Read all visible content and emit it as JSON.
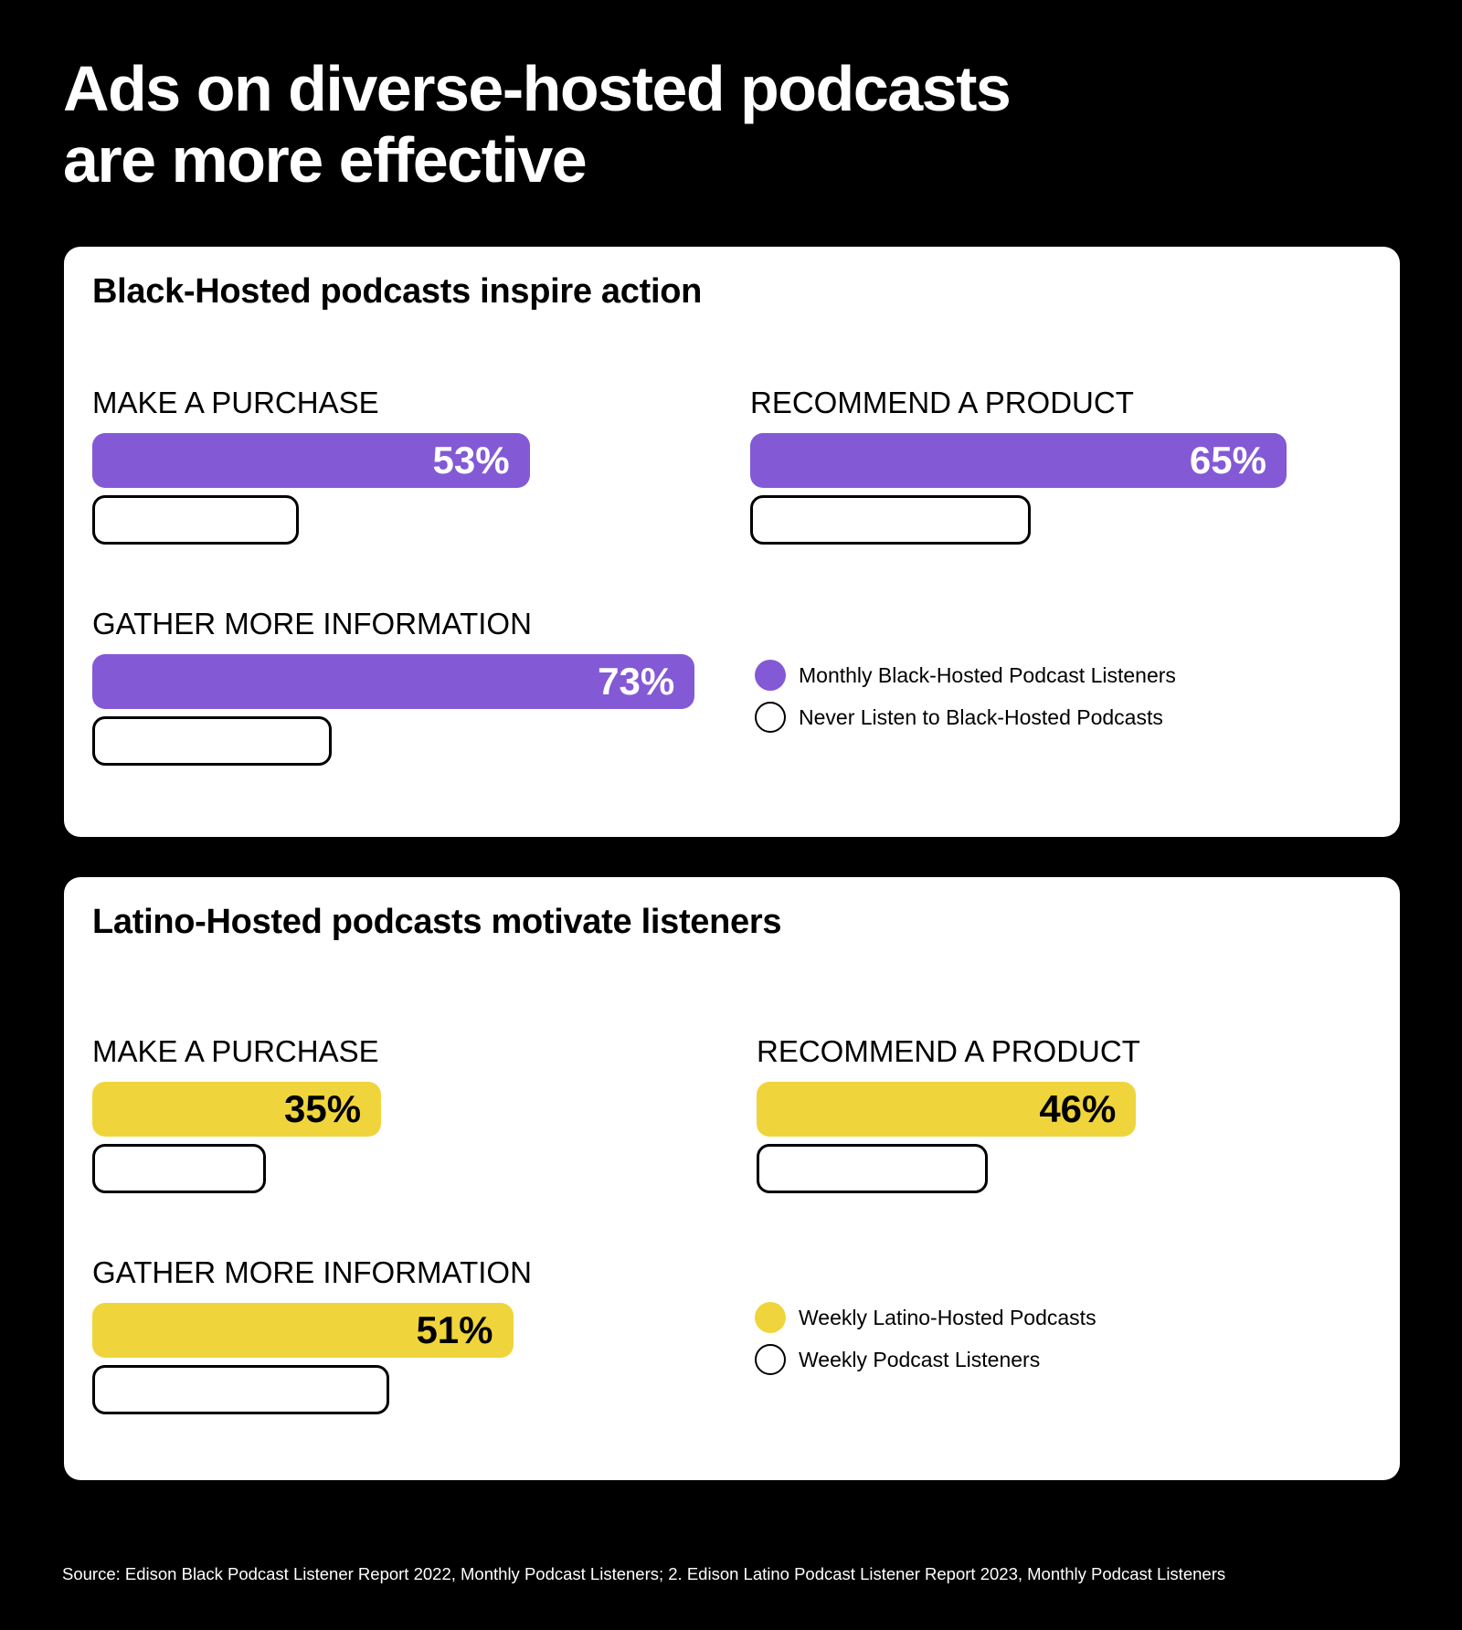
{
  "title": {
    "line1": "Ads on diverse-hosted podcasts",
    "line2": "are more effective"
  },
  "chart_data": [
    {
      "type": "bar",
      "title": "Black-Hosted podcasts inspire action",
      "categories": [
        "MAKE A PURCHASE",
        "RECOMMEND A PRODUCT",
        "GATHER MORE INFORMATION"
      ],
      "series": [
        {
          "name": "Monthly Black-Hosted Podcast Listeners",
          "values": [
            53,
            65,
            73
          ],
          "labels": [
            "53%",
            "65%",
            "73%"
          ],
          "color": "#8359d6"
        },
        {
          "name": "Never Listen to Black-Hosted Podcasts",
          "values": [
            25,
            34,
            29
          ],
          "color": "#ffffff"
        }
      ],
      "unit": "%",
      "legend_position": "right"
    },
    {
      "type": "bar",
      "title": "Latino-Hosted podcasts motivate listeners",
      "categories": [
        "MAKE A PURCHASE",
        "RECOMMEND A PRODUCT",
        "GATHER MORE INFORMATION"
      ],
      "series": [
        {
          "name": "Weekly Latino-Hosted Podcasts",
          "values": [
            35,
            46,
            51
          ],
          "labels": [
            "35%",
            "46%",
            "51%"
          ],
          "color": "#efd53b"
        },
        {
          "name": "Weekly Podcast Listeners",
          "values": [
            21,
            28,
            36
          ],
          "color": "#ffffff"
        }
      ],
      "unit": "%",
      "legend_position": "right"
    }
  ],
  "colors": {
    "background": "#000000",
    "panel": "#ffffff",
    "black_hosted_bar": "#8359d6",
    "latino_hosted_bar": "#efd53b"
  },
  "source": "Source: Edison Black Podcast Listener Report 2022, Monthly Podcast Listeners; 2. Edison Latino Podcast Listener Report 2023, Monthly Podcast Listeners"
}
